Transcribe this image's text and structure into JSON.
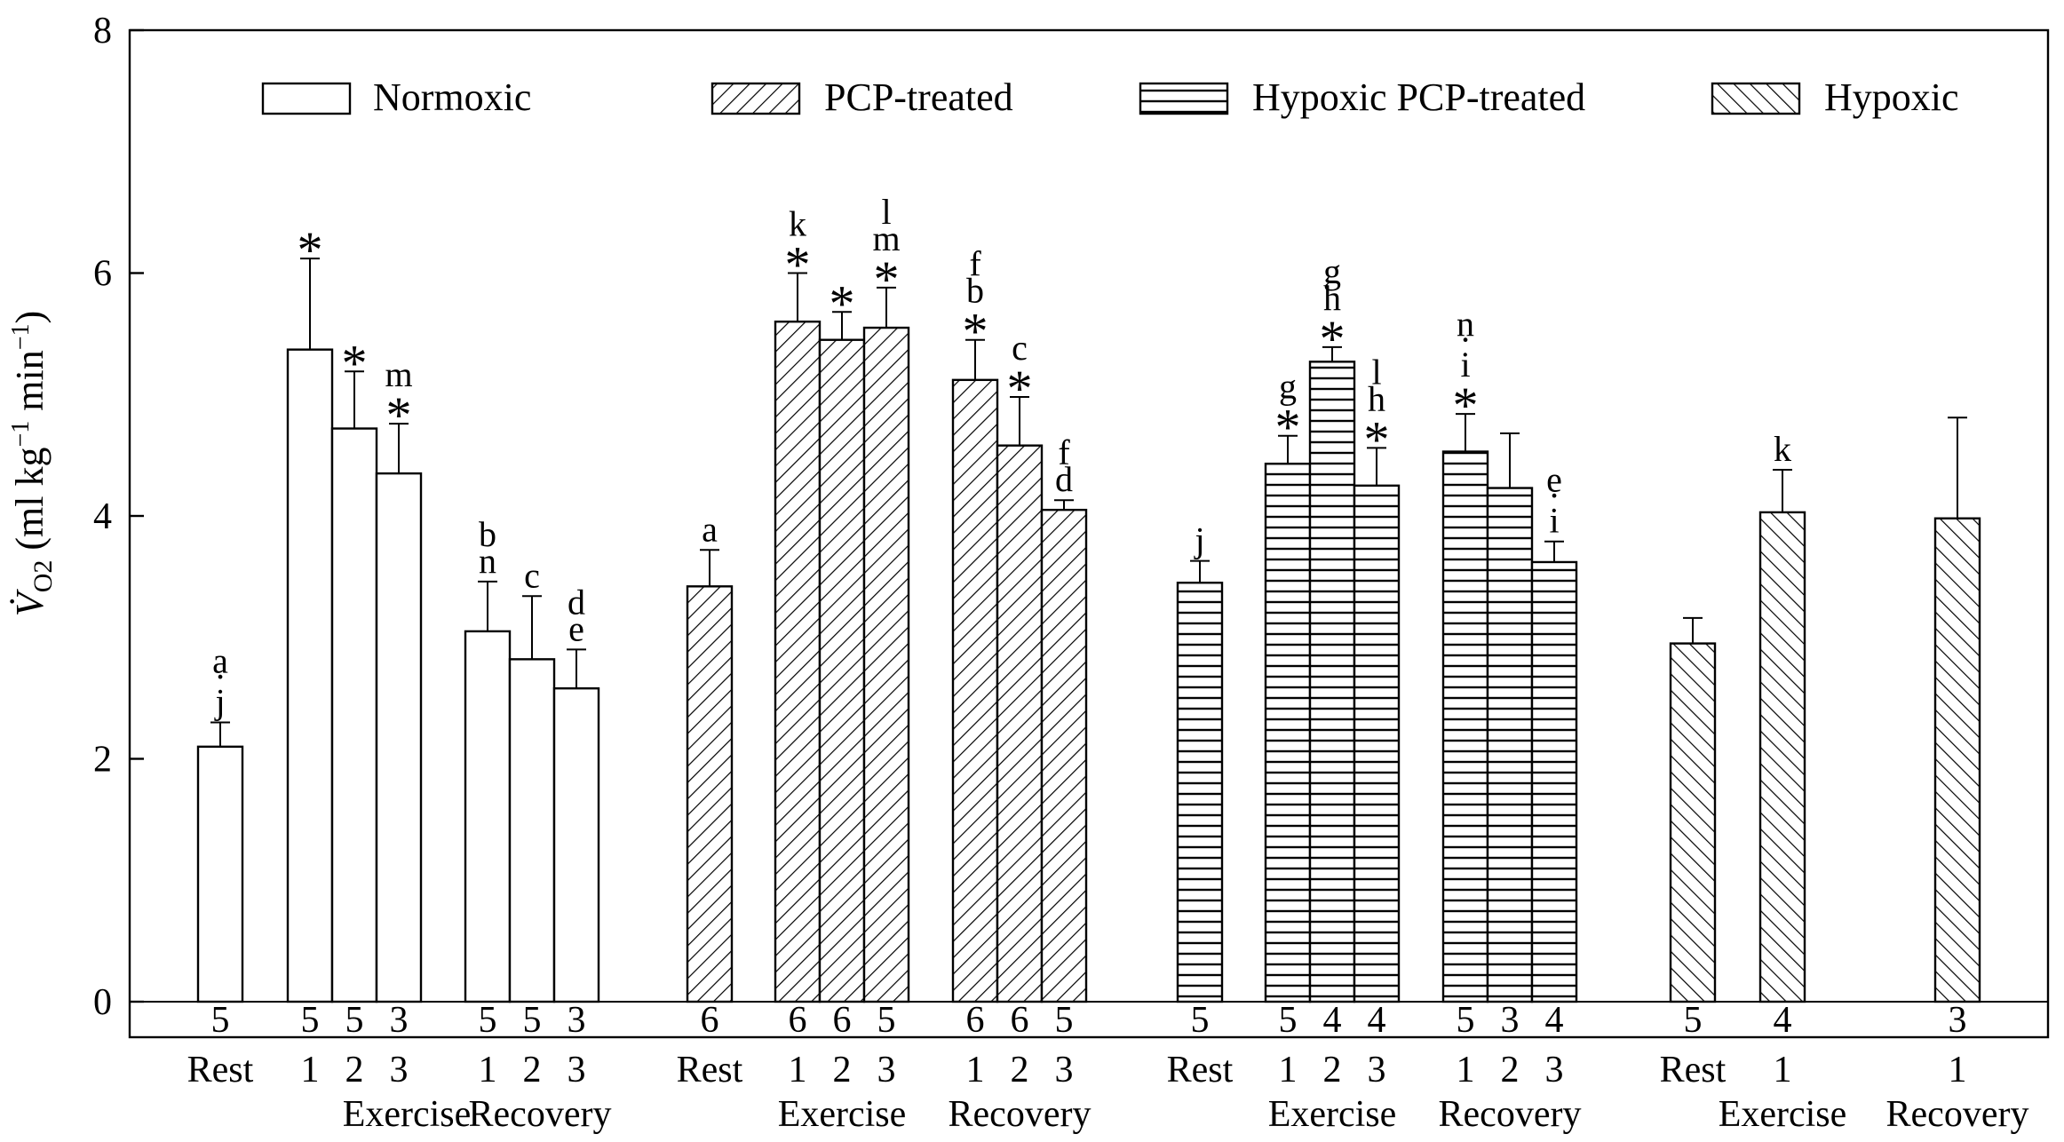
{
  "chart_data": {
    "type": "bar",
    "ylabel": "V̇O2 (ml kg−1 min−1)",
    "ylim": [
      0,
      8
    ],
    "yticks": [
      0,
      2,
      4,
      6,
      8
    ],
    "grid": false,
    "legend_position": "top",
    "series": [
      {
        "name": "Normoxic",
        "pattern": "open",
        "bars": [
          {
            "label": "Rest",
            "phase": "Rest",
            "value": 2.1,
            "error": 0.2,
            "n": "5",
            "annotation": [
              "a",
              "·",
              "j"
            ]
          },
          {
            "label": "1",
            "phase": "Exercise",
            "value": 5.37,
            "error": 0.75,
            "n": "5",
            "annotation": [
              "*"
            ]
          },
          {
            "label": "2",
            "phase": "Exercise",
            "value": 4.72,
            "error": 0.47,
            "n": "5",
            "annotation": [
              "*"
            ]
          },
          {
            "label": "3",
            "phase": "Exercise",
            "value": 4.35,
            "error": 0.41,
            "n": "3",
            "annotation": [
              "m",
              "*"
            ]
          },
          {
            "label": "1",
            "phase": "Recovery",
            "value": 3.05,
            "error": 0.41,
            "n": "5",
            "annotation": [
              "b",
              "n"
            ]
          },
          {
            "label": "2",
            "phase": "Recovery",
            "value": 2.82,
            "error": 0.52,
            "n": "5",
            "annotation": [
              "c"
            ]
          },
          {
            "label": "3",
            "phase": "Recovery",
            "value": 2.58,
            "error": 0.32,
            "n": "3",
            "annotation": [
              "d",
              "e"
            ]
          }
        ]
      },
      {
        "name": "PCP-treated",
        "pattern": "diag-right",
        "bars": [
          {
            "label": "Rest",
            "phase": "Rest",
            "value": 3.42,
            "error": 0.3,
            "n": "6",
            "annotation": [
              "a"
            ]
          },
          {
            "label": "1",
            "phase": "Exercise",
            "value": 5.6,
            "error": 0.4,
            "n": "6",
            "annotation": [
              "k",
              "*"
            ]
          },
          {
            "label": "2",
            "phase": "Exercise",
            "value": 5.45,
            "error": 0.23,
            "n": "6",
            "annotation": [
              "*"
            ]
          },
          {
            "label": "3",
            "phase": "Exercise",
            "value": 5.55,
            "error": 0.33,
            "n": "5",
            "annotation": [
              "l",
              "m",
              "*"
            ]
          },
          {
            "label": "1",
            "phase": "Recovery",
            "value": 5.12,
            "error": 0.33,
            "n": "6",
            "annotation": [
              "f",
              "b",
              "*"
            ]
          },
          {
            "label": "2",
            "phase": "Recovery",
            "value": 4.58,
            "error": 0.4,
            "n": "6",
            "annotation": [
              "c",
              "*"
            ]
          },
          {
            "label": "3",
            "phase": "Recovery",
            "value": 4.05,
            "error": 0.08,
            "n": "5",
            "annotation": [
              "f",
              "d"
            ]
          }
        ]
      },
      {
        "name": "Hypoxic PCP-treated",
        "pattern": "horizontal",
        "bars": [
          {
            "label": "Rest",
            "phase": "Rest",
            "value": 3.45,
            "error": 0.18,
            "n": "5",
            "annotation": [
              "j"
            ]
          },
          {
            "label": "1",
            "phase": "Exercise",
            "value": 4.43,
            "error": 0.23,
            "n": "5",
            "annotation": [
              "g",
              "*"
            ]
          },
          {
            "label": "2",
            "phase": "Exercise",
            "value": 5.27,
            "error": 0.12,
            "n": "4",
            "annotation": [
              "g",
              "h",
              "*"
            ]
          },
          {
            "label": "3",
            "phase": "Exercise",
            "value": 4.25,
            "error": 0.31,
            "n": "4",
            "annotation": [
              "l",
              "h",
              "*"
            ]
          },
          {
            "label": "1",
            "phase": "Recovery",
            "value": 4.53,
            "error": 0.31,
            "n": "5",
            "annotation": [
              "n",
              "·",
              "i",
              "*"
            ]
          },
          {
            "label": "2",
            "phase": "Recovery",
            "value": 4.23,
            "error": 0.45,
            "n": "3",
            "annotation": []
          },
          {
            "label": "3",
            "phase": "Recovery",
            "value": 3.62,
            "error": 0.17,
            "n": "4",
            "annotation": [
              "e",
              "·",
              "i"
            ]
          }
        ]
      },
      {
        "name": "Hypoxic",
        "pattern": "diag-left",
        "bars": [
          {
            "label": "Rest",
            "phase": "Rest",
            "value": 2.95,
            "error": 0.21,
            "n": "5",
            "annotation": []
          },
          {
            "label": "1",
            "phase": "Exercise",
            "value": 4.03,
            "error": 0.35,
            "n": "4",
            "annotation": [
              "k"
            ]
          },
          {
            "label": "1",
            "phase": "Recovery",
            "value": 3.98,
            "error": 0.83,
            "n": "3",
            "annotation": []
          }
        ]
      }
    ],
    "phase_labels": [
      {
        "group": 0,
        "text": "Exercise",
        "phase": "Exercise"
      },
      {
        "group": 0,
        "text": "Recovery",
        "phase": "Recovery"
      },
      {
        "group": 1,
        "text": "Exercise",
        "phase": "Exercise"
      },
      {
        "group": 1,
        "text": "Recovery",
        "phase": "Recovery"
      },
      {
        "group": 2,
        "text": "Exercise",
        "phase": "Exercise"
      },
      {
        "group": 2,
        "text": "Recovery",
        "phase": "Recovery"
      },
      {
        "group": 3,
        "text": "Exercise",
        "phase": "Exercise"
      },
      {
        "group": 3,
        "text": "Recovery",
        "phase": "Recovery"
      }
    ]
  }
}
